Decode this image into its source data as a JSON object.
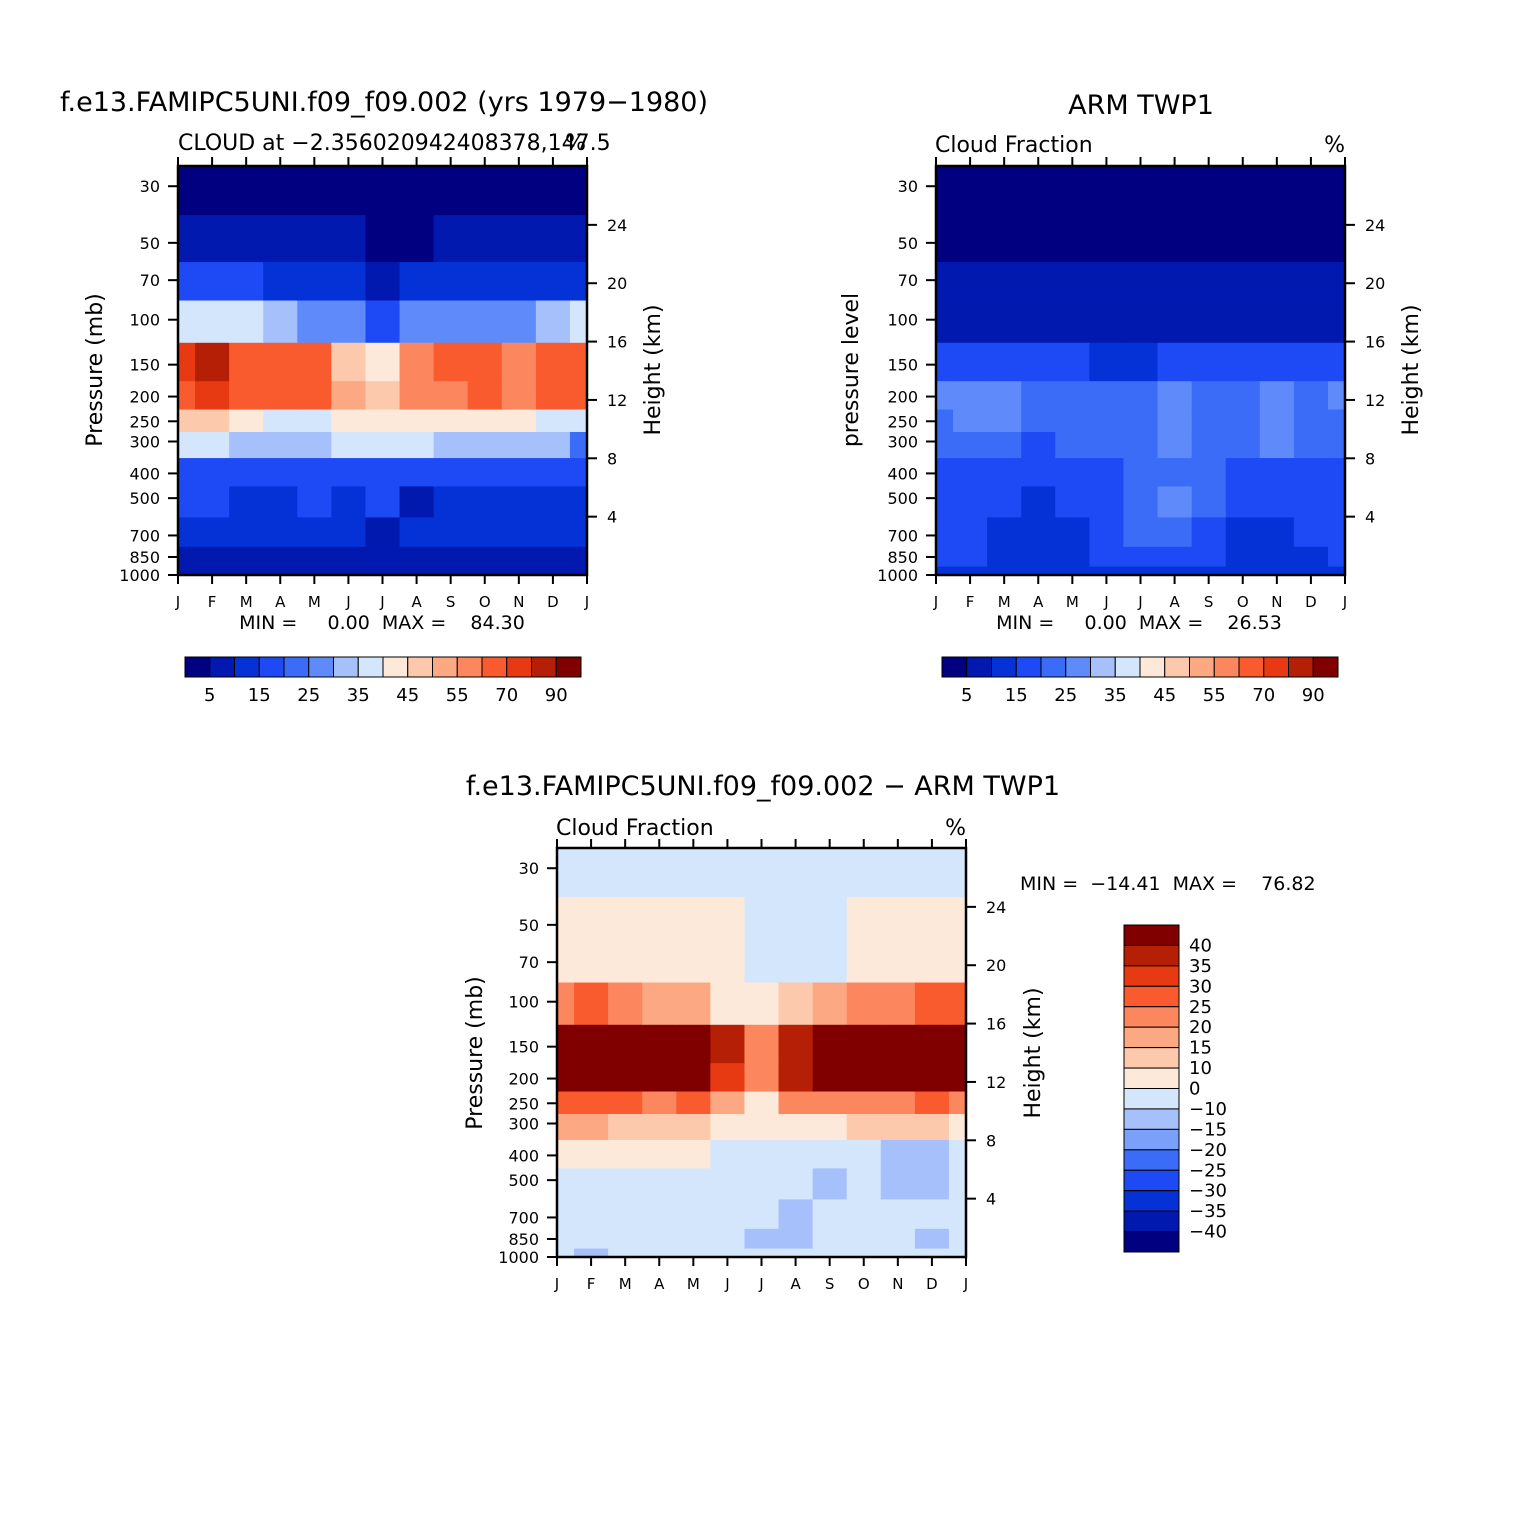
{
  "chart_data": [
    {
      "id": "model",
      "type": "heatmap",
      "title": "f.e13.FAMIPC5UNI.f09_f09.002 (yrs 1979−1980)",
      "subtitle_left": "CLOUD at −2.356020942408378,147.5",
      "subtitle_right": "%",
      "ylabel_left": "Pressure (mb)",
      "ylabel_right": "Height (km)",
      "x_ticks": [
        "J",
        "F",
        "M",
        "A",
        "M",
        "J",
        "J",
        "A",
        "S",
        "O",
        "N",
        "D",
        "J"
      ],
      "y_ticks_pressure": [
        30,
        50,
        70,
        100,
        150,
        200,
        250,
        300,
        400,
        500,
        700,
        850,
        1000
      ],
      "y_ticks_height": [
        24,
        20,
        16,
        12,
        8,
        4
      ],
      "min_max_text": "MIN =     0.00  MAX =    84.30",
      "colorbar": {
        "labels": [
          "5",
          "15",
          "25",
          "35",
          "45",
          "55",
          "70",
          "90"
        ],
        "colors": [
          "#000080",
          "#0219b0",
          "#0432d6",
          "#1e4af5",
          "#3b6cf8",
          "#5f8bfa",
          "#a6c0fb",
          "#d4e6fc",
          "#fde9d9",
          "#fcc9ad",
          "#fca883",
          "#fc865e",
          "#fa5b2e",
          "#e73a12",
          "#b51f06",
          "#800000"
        ]
      },
      "grid_levels": [
        1000,
        850,
        700,
        500,
        400,
        300,
        250,
        200,
        150,
        100,
        70,
        50,
        30
      ],
      "grid_months": [
        "J",
        "F",
        "M",
        "A",
        "M",
        "J",
        "J",
        "A",
        "S",
        "O",
        "N",
        "D",
        "J"
      ],
      "z": [
        [
          3,
          3,
          3,
          3,
          3,
          3,
          3,
          3,
          3,
          3,
          3,
          3,
          3
        ],
        [
          4,
          4,
          4,
          4,
          4,
          4,
          4,
          4,
          4,
          4,
          4,
          4,
          4
        ],
        [
          6,
          6,
          6,
          7,
          6,
          6,
          4,
          5,
          5,
          5,
          5,
          5,
          5
        ],
        [
          10,
          10,
          9,
          9,
          11,
          9,
          11,
          4,
          9,
          8,
          6,
          5,
          6
        ],
        [
          14,
          14,
          13,
          13,
          14,
          13,
          13,
          13,
          14,
          14,
          14,
          13,
          10
        ],
        [
          30,
          32,
          29,
          28,
          26,
          30,
          31,
          30,
          29,
          28,
          26,
          25,
          18
        ],
        [
          40,
          42,
          36,
          33,
          33,
          36,
          36,
          37,
          35,
          35,
          35,
          34,
          30
        ],
        [
          62,
          68,
          62,
          58,
          60,
          45,
          42,
          50,
          52,
          55,
          54,
          60,
          55
        ],
        [
          66,
          76,
          63,
          56,
          56,
          42,
          36,
          52,
          55,
          60,
          54,
          63,
          62
        ],
        [
          30,
          34,
          30,
          26,
          22,
          20,
          10,
          20,
          24,
          24,
          24,
          28,
          30
        ],
        [
          10,
          10,
          10,
          8,
          8,
          5,
          3,
          5,
          6,
          7,
          8,
          9,
          9
        ],
        [
          3,
          3,
          3,
          3,
          3,
          3,
          2,
          2,
          3,
          3,
          3,
          3,
          3
        ],
        [
          2,
          2,
          2,
          2,
          2,
          2,
          2,
          2,
          2,
          2,
          2,
          2,
          2
        ]
      ]
    },
    {
      "id": "obs",
      "type": "heatmap",
      "title": "ARM TWP1",
      "subtitle_left": "Cloud Fraction",
      "subtitle_right": "%",
      "ylabel_left": "pressure level",
      "ylabel_right": "Height (km)",
      "x_ticks": [
        "J",
        "F",
        "M",
        "A",
        "M",
        "J",
        "J",
        "A",
        "S",
        "O",
        "N",
        "D",
        "J"
      ],
      "y_ticks_pressure": [
        30,
        50,
        70,
        100,
        150,
        200,
        250,
        300,
        400,
        500,
        700,
        850,
        1000
      ],
      "y_ticks_height": [
        24,
        20,
        16,
        12,
        8,
        4
      ],
      "min_max_text": "MIN =     0.00  MAX =    26.53",
      "colorbar": {
        "labels": [
          "5",
          "15",
          "25",
          "35",
          "45",
          "55",
          "70",
          "90"
        ],
        "colors": [
          "#000080",
          "#0219b0",
          "#0432d6",
          "#1e4af5",
          "#3b6cf8",
          "#5f8bfa",
          "#a6c0fb",
          "#d4e6fc",
          "#fde9d9",
          "#fcc9ad",
          "#fca883",
          "#fc865e",
          "#fa5b2e",
          "#e73a12",
          "#b51f06",
          "#800000"
        ]
      },
      "grid_levels": [
        1000,
        850,
        700,
        500,
        400,
        300,
        250,
        200,
        150,
        100,
        70,
        50,
        30
      ],
      "grid_months": [
        "J",
        "F",
        "M",
        "A",
        "M",
        "J",
        "J",
        "A",
        "S",
        "O",
        "N",
        "D",
        "J"
      ],
      "z": [
        [
          8,
          8,
          8,
          8,
          8,
          8,
          8,
          8,
          8,
          8,
          8,
          8,
          8
        ],
        [
          12,
          12,
          8,
          8,
          8,
          12,
          10,
          12,
          12,
          8,
          8,
          8,
          12
        ],
        [
          12,
          12,
          8,
          6,
          8,
          12,
          16,
          16,
          12,
          8,
          8,
          12,
          12
        ],
        [
          14,
          14,
          12,
          8,
          12,
          14,
          18,
          20,
          18,
          14,
          14,
          14,
          14
        ],
        [
          14,
          14,
          14,
          10,
          14,
          14,
          16,
          18,
          16,
          14,
          12,
          14,
          14
        ],
        [
          16,
          18,
          16,
          14,
          16,
          16,
          18,
          20,
          18,
          18,
          20,
          16,
          16
        ],
        [
          18,
          22,
          20,
          16,
          16,
          16,
          18,
          24,
          18,
          18,
          22,
          18,
          18
        ],
        [
          20,
          22,
          20,
          16,
          16,
          16,
          18,
          22,
          18,
          18,
          20,
          18,
          20
        ],
        [
          14,
          14,
          12,
          12,
          10,
          8,
          8,
          10,
          10,
          10,
          12,
          12,
          14
        ],
        [
          4,
          4,
          4,
          4,
          4,
          4,
          4,
          4,
          4,
          4,
          4,
          4,
          4
        ],
        [
          3,
          3,
          3,
          3,
          3,
          3,
          3,
          3,
          3,
          3,
          3,
          3,
          3
        ],
        [
          2,
          2,
          2,
          2,
          2,
          2,
          2,
          2,
          2,
          2,
          2,
          2,
          2
        ],
        [
          2,
          2,
          2,
          2,
          2,
          2,
          2,
          2,
          2,
          2,
          2,
          2,
          2
        ]
      ]
    },
    {
      "id": "diff",
      "type": "heatmap",
      "title": "f.e13.FAMIPC5UNI.f09_f09.002 − ARM TWP1",
      "subtitle_left": "Cloud Fraction",
      "subtitle_right": "%",
      "ylabel_left": "Pressure (mb)",
      "ylabel_right": "Height (km)",
      "x_ticks": [
        "J",
        "F",
        "M",
        "A",
        "M",
        "J",
        "J",
        "A",
        "S",
        "O",
        "N",
        "D",
        "J"
      ],
      "y_ticks_pressure": [
        30,
        50,
        70,
        100,
        150,
        200,
        250,
        300,
        400,
        500,
        700,
        850,
        1000
      ],
      "y_ticks_height": [
        24,
        20,
        16,
        12,
        8,
        4
      ],
      "min_max_text": "MIN =  −14.41  MAX =    76.82",
      "colorbar": {
        "labels": [
          "40",
          "35",
          "30",
          "25",
          "20",
          "15",
          "10",
          "0",
          "−10",
          "−15",
          "−20",
          "−25",
          "−30",
          "−35",
          "−40"
        ],
        "bounds": [
          40,
          35,
          30,
          25,
          20,
          15,
          10,
          0,
          -10,
          -15,
          -20,
          -25,
          -30,
          -35,
          -40
        ],
        "colors": [
          "#800000",
          "#b51f06",
          "#e73a12",
          "#fa5b2e",
          "#fc865e",
          "#fca883",
          "#fcc9ad",
          "#fde9d9",
          "#d4e6fc",
          "#a6c0fb",
          "#7ba0f9",
          "#3b6cf8",
          "#1e4af5",
          "#0432d6",
          "#0219b0",
          "#000080"
        ]
      },
      "grid_levels": [
        1000,
        850,
        700,
        500,
        400,
        300,
        250,
        200,
        150,
        100,
        70,
        50,
        30
      ],
      "grid_months": [
        "J",
        "F",
        "M",
        "A",
        "M",
        "J",
        "J",
        "A",
        "S",
        "O",
        "N",
        "D",
        "J"
      ],
      "z": [
        [
          -3,
          -12,
          -3,
          -3,
          -3,
          -3,
          -3,
          -3,
          -3,
          -3,
          -3,
          -3,
          -3
        ],
        [
          -3,
          -3,
          -3,
          -3,
          -3,
          -3,
          -12,
          -12,
          -3,
          -3,
          -3,
          -12,
          -3
        ],
        [
          -3,
          -3,
          -3,
          -3,
          -3,
          -3,
          -3,
          -12,
          -3,
          -3,
          -3,
          -3,
          -3
        ],
        [
          -3,
          -3,
          -3,
          -3,
          -3,
          -3,
          -3,
          -3,
          -12,
          -3,
          -12,
          -12,
          -3
        ],
        [
          2,
          2,
          1,
          1,
          2,
          -3,
          -3,
          -3,
          -3,
          -3,
          -12,
          -12,
          -3
        ],
        [
          18,
          16,
          14,
          12,
          12,
          6,
          3,
          6,
          8,
          10,
          10,
          14,
          5
        ],
        [
          25,
          28,
          25,
          22,
          25,
          16,
          6,
          20,
          22,
          22,
          22,
          26,
          22
        ],
        [
          45,
          48,
          45,
          42,
          45,
          30,
          20,
          35,
          40,
          40,
          42,
          45,
          40
        ],
        [
          50,
          52,
          48,
          45,
          48,
          35,
          22,
          38,
          44,
          44,
          44,
          48,
          48
        ],
        [
          20,
          25,
          20,
          18,
          16,
          8,
          3,
          14,
          18,
          22,
          22,
          25,
          28
        ],
        [
          6,
          6,
          6,
          5,
          5,
          2,
          -3,
          -3,
          -3,
          6,
          6,
          6,
          6
        ],
        [
          2,
          2,
          2,
          2,
          2,
          2,
          -3,
          -3,
          -3,
          2,
          2,
          2,
          2
        ],
        [
          -3,
          -3,
          -3,
          -3,
          -3,
          -3,
          -3,
          -3,
          -3,
          -3,
          -3,
          -3,
          -3
        ]
      ]
    }
  ]
}
